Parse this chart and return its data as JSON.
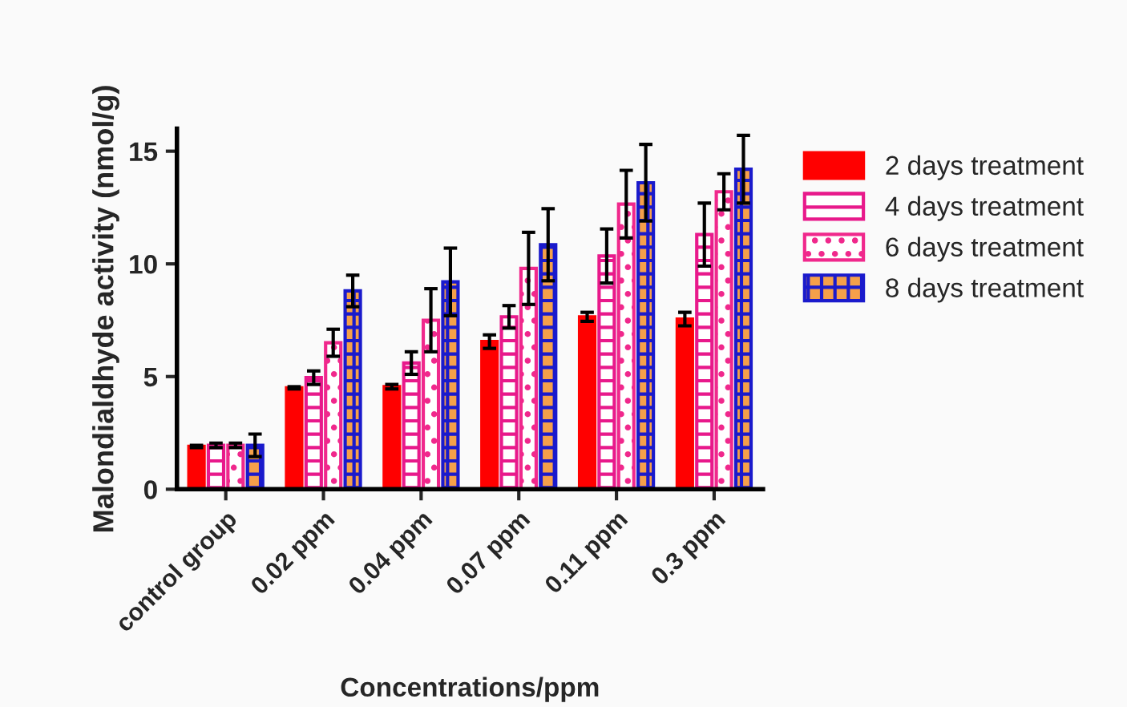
{
  "chart_data": {
    "type": "bar",
    "xlabel": "Concentrations/ppm",
    "ylabel": "Malondialdhyde activity (nmol/g)",
    "categories": [
      "control group",
      "0.02 ppm",
      "0.04 ppm",
      "0.07 ppm",
      "0.11 ppm",
      "0.3 ppm"
    ],
    "series": [
      {
        "name": "2 days treatment",
        "color": "#ff0000",
        "values": [
          1.9,
          4.5,
          4.55,
          6.55,
          7.65,
          7.55
        ],
        "errors": [
          0.05,
          0.05,
          0.1,
          0.3,
          0.2,
          0.3
        ]
      },
      {
        "name": "4 days treatment",
        "color": "#e8198b",
        "values": [
          1.95,
          4.95,
          5.6,
          7.65,
          10.35,
          11.3
        ],
        "errors": [
          0.1,
          0.3,
          0.5,
          0.5,
          1.2,
          1.4
        ]
      },
      {
        "name": "6 days treatment",
        "color": "#f0288c",
        "values": [
          1.95,
          6.5,
          7.5,
          9.8,
          12.65,
          13.2
        ],
        "errors": [
          0.1,
          0.6,
          1.4,
          1.6,
          1.5,
          0.8
        ]
      },
      {
        "name": "8 days treatment",
        "color": "#1a1acc",
        "values": [
          1.95,
          8.8,
          9.2,
          10.85,
          13.6,
          14.2
        ],
        "errors": [
          0.5,
          0.7,
          1.5,
          1.6,
          1.7,
          1.5
        ]
      }
    ],
    "ylim": [
      0,
      16
    ],
    "yticks": [
      0,
      5,
      10,
      15
    ],
    "grid": false,
    "legend": "top right"
  }
}
